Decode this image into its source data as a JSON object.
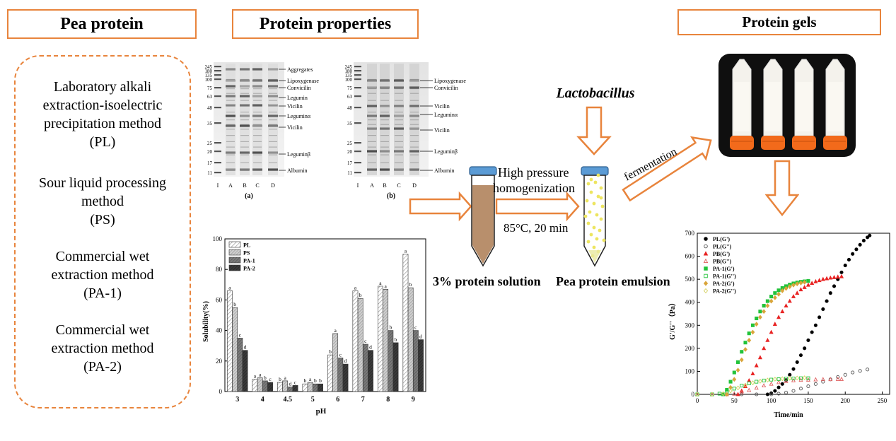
{
  "headers": {
    "pea_protein": "Pea protein",
    "protein_properties": "Protein properties",
    "protein_gels": "Protein gels"
  },
  "methods": [
    {
      "lines": [
        "Laboratory alkali",
        "extraction-isoelectric",
        "precipitation method",
        "(PL)"
      ]
    },
    {
      "lines": [
        "Sour liquid processing",
        "method",
        "(PS)"
      ]
    },
    {
      "lines": [
        "Commercial wet",
        "extraction method",
        "(PA-1)"
      ]
    },
    {
      "lines": [
        "Commercial wet",
        "extraction method",
        "(PA-2)"
      ]
    }
  ],
  "gel_a": {
    "caption": "(a)",
    "markers": [
      "245",
      "180",
      "135",
      "100",
      "75",
      "63",
      "48",
      "35",
      "25",
      "20",
      "17",
      "11"
    ],
    "lanes": [
      "I",
      "A",
      "B",
      "C",
      "D"
    ],
    "bands": [
      "Aggregates",
      "Lipoxygenase",
      "Convicilin",
      "Legumin",
      "Vicilin",
      "Leguminα",
      "Vicilin",
      "Leguminβ",
      "Albumin"
    ]
  },
  "gel_b": {
    "caption": "(b)",
    "markers": [
      "245",
      "180",
      "135",
      "100",
      "75",
      "63",
      "48",
      "35",
      "25",
      "20",
      "17",
      "11"
    ],
    "lanes": [
      "I",
      "A",
      "B",
      "C",
      "D"
    ],
    "bands": [
      "Lipoxygenase",
      "Convicilin",
      "Vicilin",
      "Leguminα",
      "Vicilin",
      "Leguminβ",
      "Albumin"
    ]
  },
  "process": {
    "lactobacillus": "Lactobacillus",
    "hp_line1": "High pressure",
    "hp_line2": "homogenization",
    "temp": "85°C, 20 min",
    "fermentation": "fermentation",
    "solution_label": "3% protein solution",
    "emulsion_label": "Pea protein emulsion"
  },
  "colors": {
    "accent": "#e8843c",
    "tube_cap": "#5b9bd5",
    "protein_solution": "#b88f6c",
    "emulsion_dots": "#ede560",
    "gel_cap": "#f26a1b"
  },
  "chart_data": [
    {
      "type": "bar",
      "xlabel": "pH",
      "ylabel": "Solubility(%)",
      "ylim": [
        0,
        100
      ],
      "yticks": [
        "0",
        "20",
        "40",
        "60",
        "80",
        "100"
      ],
      "categories": [
        "3",
        "4",
        "4.5",
        "5",
        "6",
        "7",
        "8",
        "9"
      ],
      "legend_position": "top-left",
      "series": [
        {
          "name": "PL",
          "values": [
            66,
            8,
            6,
            5,
            24,
            66,
            69,
            90
          ],
          "letters": [
            "a",
            "a",
            "b",
            "b",
            "b",
            "a",
            "a",
            "a"
          ]
        },
        {
          "name": "PS",
          "values": [
            55,
            9,
            7,
            6,
            38,
            61,
            67,
            68
          ],
          "letters": [
            "b",
            "a",
            "a",
            "a",
            "a",
            "b",
            "a",
            "b"
          ]
        },
        {
          "name": "PA-1",
          "values": [
            35,
            7,
            3,
            5,
            22,
            31,
            40,
            40
          ],
          "letters": [
            "c",
            "b",
            "d",
            "b",
            "c",
            "c",
            "b",
            "c"
          ]
        },
        {
          "name": "PA-2",
          "values": [
            27,
            6,
            4,
            5,
            18,
            27,
            32,
            34
          ],
          "letters": [
            "d",
            "c",
            "c",
            "b",
            "d",
            "d",
            "b",
            "d"
          ]
        }
      ]
    },
    {
      "type": "scatter",
      "xlabel": "Time/min",
      "ylabel": "G'/G''（Pa）",
      "xlim": [
        0,
        260
      ],
      "ylim": [
        0,
        700
      ],
      "xticks": [
        "0",
        "50",
        "100",
        "150",
        "200",
        "250"
      ],
      "yticks": [
        "0",
        "100",
        "200",
        "300",
        "400",
        "500",
        "600",
        "700"
      ],
      "legend_position": "top-left",
      "series": [
        {
          "name": "PL(G')",
          "marker": "circle",
          "filled": true,
          "color": "#000000",
          "x": [
            95,
            100,
            105,
            110,
            115,
            120,
            125,
            130,
            135,
            140,
            145,
            150,
            155,
            160,
            165,
            170,
            175,
            180,
            185,
            190,
            195,
            200,
            205,
            210,
            215,
            220,
            225,
            230,
            233
          ],
          "y": [
            0,
            5,
            15,
            30,
            45,
            62,
            85,
            110,
            140,
            170,
            200,
            235,
            270,
            300,
            335,
            370,
            405,
            440,
            470,
            500,
            530,
            560,
            585,
            610,
            630,
            650,
            668,
            682,
            690
          ]
        },
        {
          "name": "PL(G'')",
          "marker": "circle",
          "filled": false,
          "color": "#555555",
          "x": [
            0,
            20,
            40,
            60,
            80,
            100,
            110,
            120,
            130,
            140,
            150,
            160,
            170,
            180,
            190,
            200,
            210,
            220,
            230
          ],
          "y": [
            0,
            0,
            0,
            0,
            0,
            0,
            3,
            8,
            15,
            25,
            35,
            45,
            55,
            65,
            75,
            85,
            95,
            102,
            108
          ]
        },
        {
          "name": "PB(G')",
          "marker": "triangle",
          "filled": true,
          "color": "#e82323",
          "x": [
            55,
            60,
            65,
            70,
            75,
            80,
            85,
            90,
            95,
            100,
            105,
            110,
            115,
            120,
            125,
            130,
            135,
            140,
            145,
            150,
            155,
            160,
            165,
            170,
            175,
            180,
            185,
            190,
            195
          ],
          "y": [
            0,
            15,
            35,
            60,
            90,
            125,
            160,
            200,
            235,
            270,
            305,
            335,
            360,
            385,
            405,
            425,
            440,
            455,
            465,
            475,
            483,
            490,
            495,
            500,
            503,
            506,
            508,
            510,
            512
          ]
        },
        {
          "name": "PB(G'')",
          "marker": "triangle",
          "filled": false,
          "color": "#e06060",
          "x": [
            0,
            20,
            40,
            50,
            60,
            70,
            80,
            90,
            100,
            110,
            120,
            130,
            140,
            150,
            160,
            170,
            180,
            190,
            195
          ],
          "y": [
            0,
            0,
            0,
            2,
            8,
            18,
            28,
            38,
            45,
            52,
            57,
            60,
            62,
            63,
            64,
            65,
            65,
            66,
            66
          ]
        },
        {
          "name": "PA-1(G')",
          "marker": "square",
          "filled": true,
          "color": "#22c33a",
          "x": [
            35,
            40,
            45,
            50,
            55,
            60,
            65,
            70,
            75,
            80,
            85,
            90,
            95,
            100,
            105,
            110,
            115,
            120,
            125,
            130,
            135,
            140,
            145,
            150
          ],
          "y": [
            0,
            20,
            55,
            95,
            140,
            185,
            225,
            265,
            300,
            330,
            360,
            385,
            405,
            425,
            440,
            452,
            462,
            470,
            477,
            482,
            486,
            489,
            491,
            493
          ]
        },
        {
          "name": "PA-1(G'')",
          "marker": "square",
          "filled": false,
          "color": "#22c33a",
          "x": [
            0,
            20,
            30,
            40,
            50,
            60,
            70,
            80,
            90,
            100,
            110,
            120,
            130,
            140,
            150
          ],
          "y": [
            0,
            0,
            3,
            12,
            25,
            38,
            48,
            55,
            60,
            64,
            66,
            68,
            69,
            70,
            70
          ]
        },
        {
          "name": "PA-2(G')",
          "marker": "diamond",
          "filled": true,
          "color": "#d9a53a",
          "x": [
            40,
            45,
            50,
            55,
            60,
            65,
            70,
            75,
            80,
            85,
            90,
            95,
            100,
            105,
            110,
            115,
            120,
            125,
            130,
            135,
            140,
            145
          ],
          "y": [
            0,
            30,
            65,
            105,
            150,
            195,
            235,
            270,
            305,
            335,
            360,
            385,
            405,
            420,
            435,
            450,
            460,
            468,
            475,
            480,
            484,
            487
          ]
        },
        {
          "name": "PA-2(G'')",
          "marker": "diamond",
          "filled": false,
          "color": "#d4d060",
          "x": [
            0,
            20,
            35,
            45,
            55,
            65,
            75,
            85,
            95,
            105,
            115,
            125,
            135,
            145
          ],
          "y": [
            0,
            0,
            3,
            15,
            28,
            40,
            50,
            57,
            62,
            66,
            68,
            70,
            71,
            72
          ]
        }
      ]
    }
  ]
}
